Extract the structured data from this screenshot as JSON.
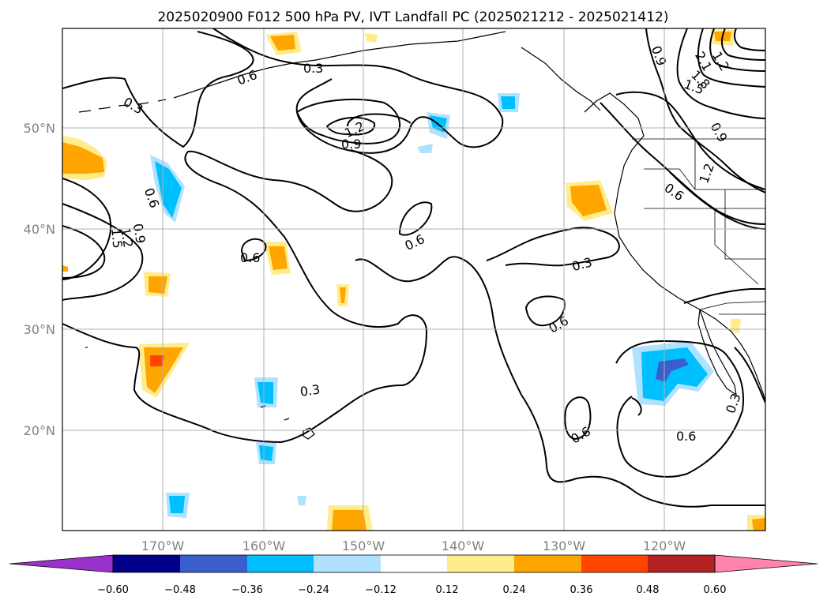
{
  "title": "2025020900 F012 500 hPa PV, IVT Landfall PC (2025021212 - 2025021412)",
  "map": {
    "lon_labels": [
      "170°W",
      "160°W",
      "150°W",
      "140°W",
      "130°W",
      "120°W"
    ],
    "lat_labels": [
      "50°N",
      "40°N",
      "30°N",
      "20°N"
    ]
  },
  "colorbar": {
    "colors": [
      "#9932cc",
      "#00008b",
      "#3a5fcd",
      "#00bfff",
      "#b0e2ff",
      "#ffffff",
      "#ffec8b",
      "#ffa500",
      "#ff4500",
      "#b22222",
      "#ff83aa"
    ],
    "tick_labels": [
      "−0.60",
      "−0.48",
      "−0.36",
      "−0.24",
      "−0.12",
      "0.12",
      "0.24",
      "0.36",
      "0.48",
      "0.60"
    ]
  },
  "contour_labels": [
    "0.3",
    "0.6",
    "0.3",
    "1.2",
    "0.9",
    "0.6",
    "0.9",
    "1.2",
    "1.5",
    "0.6",
    "0.6",
    "0.6",
    "0.3",
    "0.6",
    "0.3",
    "0.6",
    "0.9",
    "1.2",
    "1.5",
    "1.8",
    "2.1",
    "0.9",
    "1.2",
    "0.6",
    "0.3"
  ]
}
